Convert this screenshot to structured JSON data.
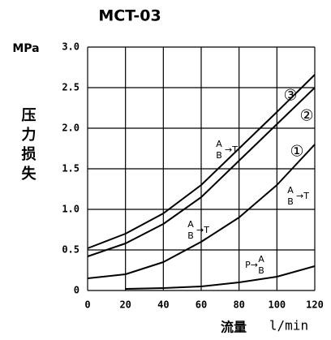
{
  "chart_data": {
    "type": "line",
    "title": "MCT-03",
    "ylabel_unit": "MPa",
    "ylabel": "压力损失",
    "xlabel": "流量",
    "xlabel_unit": "l/min",
    "x": [
      0,
      20,
      40,
      60,
      80,
      100,
      120
    ],
    "series": [
      {
        "color": "#000000",
        "values": [
          0.52,
          0.7,
          0.95,
          1.3,
          1.75,
          2.2,
          2.66
        ]
      },
      {
        "color": "#000000",
        "values": [
          0.42,
          0.58,
          0.82,
          1.15,
          1.6,
          2.05,
          2.5
        ]
      },
      {
        "color": "#000000",
        "values": [
          0.15,
          0.2,
          0.35,
          0.6,
          0.9,
          1.3,
          1.8
        ]
      },
      {
        "color": "#000000",
        "values": [
          null,
          0.02,
          0.03,
          0.05,
          0.1,
          0.17,
          0.3
        ]
      }
    ],
    "annotations": [
      "③",
      "②",
      "①"
    ],
    "flow_labels": [
      {
        "upper": "A",
        "lower": "B",
        "arrow": "→T"
      },
      {
        "upper": "A",
        "lower": "B",
        "arrow": "→T"
      },
      {
        "upper": "A",
        "lower": "B",
        "arrow": "→T"
      },
      {
        "prefix": "P→",
        "upper": "A",
        "lower": "B"
      }
    ],
    "xlim": [
      0,
      120
    ],
    "xticks": [
      0,
      20,
      40,
      60,
      80,
      100,
      120
    ],
    "ylim": [
      0,
      3
    ],
    "yticks": [
      0,
      0.5,
      {
        "value": 1,
        "label": "1.0"
      },
      1.5,
      {
        "value": 2,
        "label": "2.0"
      },
      2.5,
      {
        "value": 3,
        "label": "3.0"
      }
    ],
    "grid": true
  }
}
